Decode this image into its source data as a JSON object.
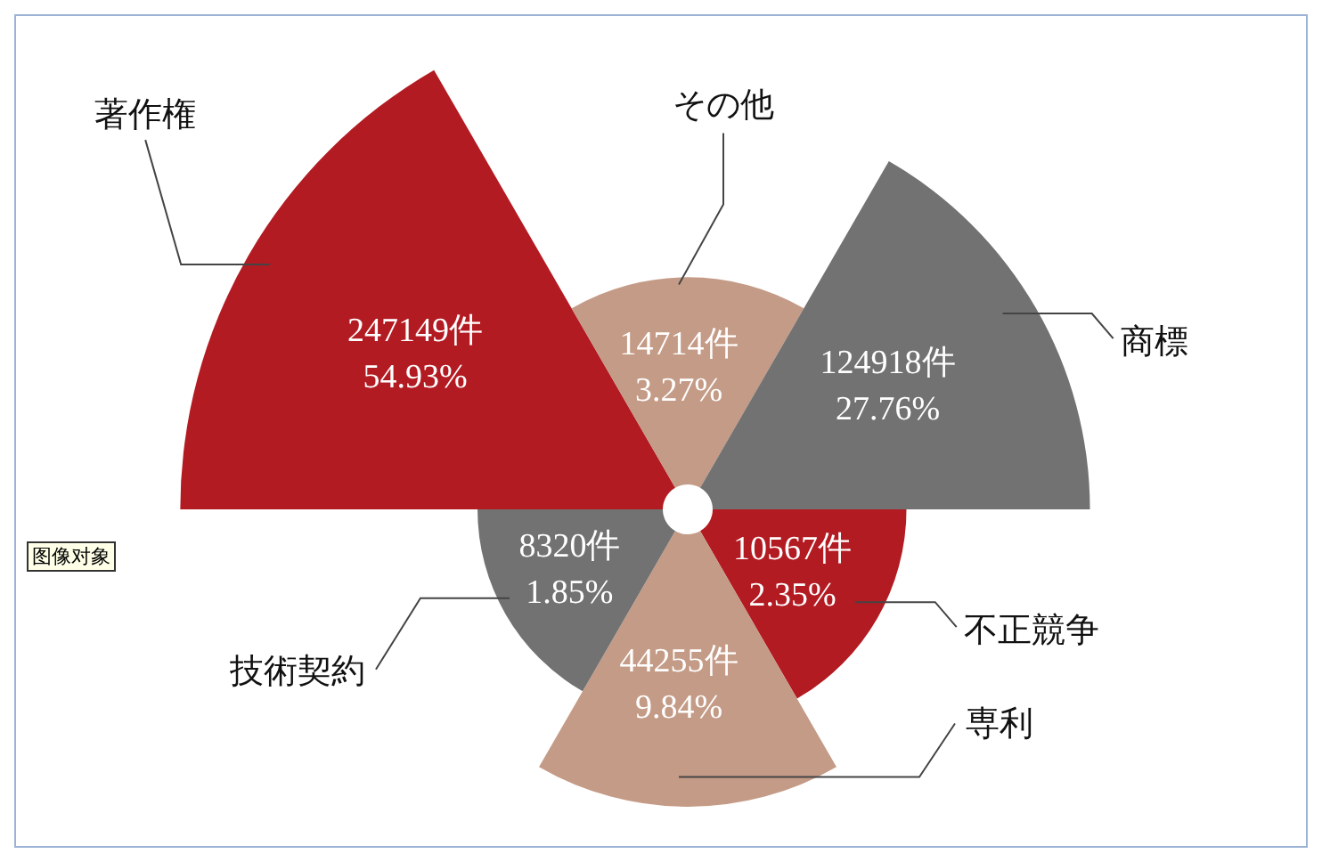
{
  "chart_data": {
    "type": "other",
    "categories": [
      "著作権",
      "その他",
      "商標",
      "不正競争",
      "専利",
      "技術契約"
    ],
    "values": [
      247149,
      14714,
      124918,
      10567,
      44255,
      8320
    ],
    "value_labels": [
      "247149件\n54.93%",
      "14714件\n3.27%",
      "124918件\n27.76%",
      "10567件\n2.35%",
      "44255件\n9.84%",
      "8320件\n1.85%"
    ],
    "colors": [
      "#b31b22",
      "#c49b86",
      "#737272",
      "#b31b22",
      "#c49b86",
      "#737272"
    ],
    "annotations": [
      "图像对象"
    ]
  }
}
